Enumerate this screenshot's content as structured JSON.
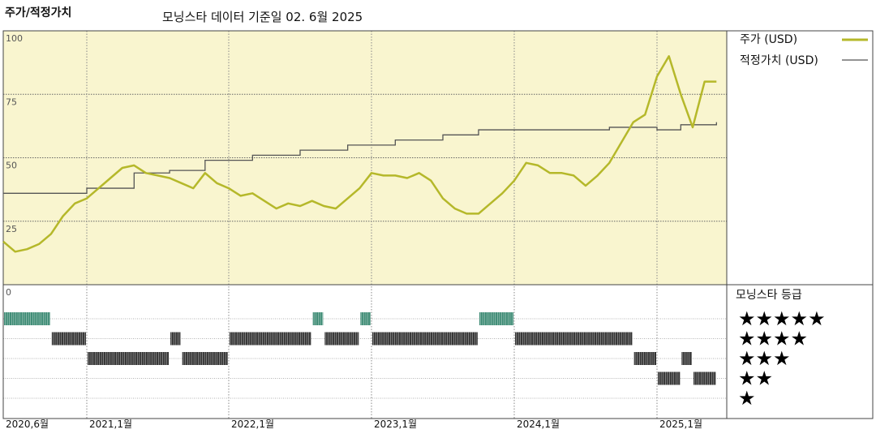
{
  "header": {
    "title": "주가/적정가치",
    "subtitle": "모닝스타 데이터 기준일 02. 6월 2025"
  },
  "legend": {
    "price_label": "주가 (USD)",
    "fair_value_label": "적정가치 (USD)",
    "rating_title": "모닝스타 등급"
  },
  "colors": {
    "price_line": "#b5b82a",
    "fair_value_line": "#555555",
    "plot_background": "#f9f5cf",
    "five_star_bars": "#3d8b74",
    "rating_bars": "#333333"
  },
  "chart_data": {
    "type": "line",
    "title": "주가/적정가치",
    "subtitle": "모닝스타 데이터 기준일 02. 6월 2025",
    "ylim": [
      0,
      100
    ],
    "y_ticks": [
      "100",
      "75",
      "50",
      "25",
      "0"
    ],
    "x_tick_labels": [
      "2020,6월",
      "2021,1월",
      "2022,1월",
      "2023,1월",
      "2024,1월",
      "2025,1월"
    ],
    "x_tick_dates": [
      "2020-06",
      "2021-01",
      "2022-01",
      "2023-01",
      "2024-01",
      "2025-01"
    ],
    "grid": true,
    "legend_position": "right",
    "series": [
      {
        "name": "주가 (USD)",
        "points": [
          [
            "2020-06",
            17
          ],
          [
            "2020-07",
            13
          ],
          [
            "2020-08",
            14
          ],
          [
            "2020-09",
            16
          ],
          [
            "2020-10",
            20
          ],
          [
            "2020-11",
            27
          ],
          [
            "2020-12",
            32
          ],
          [
            "2021-01",
            34
          ],
          [
            "2021-02",
            38
          ],
          [
            "2021-03",
            42
          ],
          [
            "2021-04",
            46
          ],
          [
            "2021-05",
            47
          ],
          [
            "2021-06",
            44
          ],
          [
            "2021-07",
            43
          ],
          [
            "2021-08",
            42
          ],
          [
            "2021-09",
            40
          ],
          [
            "2021-10",
            38
          ],
          [
            "2021-11",
            44
          ],
          [
            "2021-12",
            40
          ],
          [
            "2022-01",
            38
          ],
          [
            "2022-02",
            35
          ],
          [
            "2022-03",
            36
          ],
          [
            "2022-04",
            33
          ],
          [
            "2022-05",
            30
          ],
          [
            "2022-06",
            32
          ],
          [
            "2022-07",
            31
          ],
          [
            "2022-08",
            33
          ],
          [
            "2022-09",
            31
          ],
          [
            "2022-10",
            30
          ],
          [
            "2022-11",
            34
          ],
          [
            "2022-12",
            38
          ],
          [
            "2023-01",
            44
          ],
          [
            "2023-02",
            43
          ],
          [
            "2023-03",
            43
          ],
          [
            "2023-04",
            42
          ],
          [
            "2023-05",
            44
          ],
          [
            "2023-06",
            41
          ],
          [
            "2023-07",
            34
          ],
          [
            "2023-08",
            30
          ],
          [
            "2023-09",
            28
          ],
          [
            "2023-10",
            28
          ],
          [
            "2023-11",
            32
          ],
          [
            "2023-12",
            36
          ],
          [
            "2024-01",
            41
          ],
          [
            "2024-02",
            48
          ],
          [
            "2024-03",
            47
          ],
          [
            "2024-04",
            44
          ],
          [
            "2024-05",
            44
          ],
          [
            "2024-06",
            43
          ],
          [
            "2024-07",
            39
          ],
          [
            "2024-08",
            43
          ],
          [
            "2024-09",
            48
          ],
          [
            "2024-10",
            56
          ],
          [
            "2024-11",
            64
          ],
          [
            "2024-12",
            67
          ],
          [
            "2025-01",
            82
          ],
          [
            "2025-02",
            90
          ],
          [
            "2025-03",
            75
          ],
          [
            "2025-04",
            62
          ],
          [
            "2025-05",
            80
          ],
          [
            "2025-06",
            80
          ]
        ]
      },
      {
        "name": "적정가치 (USD)",
        "step_points": [
          [
            "2020-06",
            36
          ],
          [
            "2021-01",
            38
          ],
          [
            "2021-05",
            44
          ],
          [
            "2021-08",
            45
          ],
          [
            "2021-11",
            49
          ],
          [
            "2022-03",
            51
          ],
          [
            "2022-07",
            53
          ],
          [
            "2022-11",
            55
          ],
          [
            "2023-03",
            57
          ],
          [
            "2023-07",
            59
          ],
          [
            "2023-10",
            61
          ],
          [
            "2024-09",
            62
          ],
          [
            "2025-01",
            61
          ],
          [
            "2025-03",
            63
          ],
          [
            "2025-06",
            64
          ]
        ]
      }
    ],
    "rating_rows": [
      "★★★★★",
      "★★★★",
      "★★★",
      "★★",
      "★"
    ],
    "rating_periods": [
      {
        "rating": 5,
        "from": "2020-06",
        "to": "2020-10"
      },
      {
        "rating": 4,
        "from": "2020-10",
        "to": "2021-01"
      },
      {
        "rating": 3,
        "from": "2021-01",
        "to": "2021-08"
      },
      {
        "rating": 4,
        "from": "2021-08",
        "to": "2021-09"
      },
      {
        "rating": 3,
        "from": "2021-09",
        "to": "2022-01"
      },
      {
        "rating": 4,
        "from": "2022-01",
        "to": "2022-08"
      },
      {
        "rating": 5,
        "from": "2022-08",
        "to": "2022-09"
      },
      {
        "rating": 4,
        "from": "2022-09",
        "to": "2022-12"
      },
      {
        "rating": 5,
        "from": "2022-12",
        "to": "2023-01"
      },
      {
        "rating": 4,
        "from": "2023-01",
        "to": "2023-10"
      },
      {
        "rating": 5,
        "from": "2023-10",
        "to": "2024-01"
      },
      {
        "rating": 4,
        "from": "2024-01",
        "to": "2024-11"
      },
      {
        "rating": 3,
        "from": "2024-11",
        "to": "2025-01"
      },
      {
        "rating": 2,
        "from": "2025-01",
        "to": "2025-03"
      },
      {
        "rating": 3,
        "from": "2025-03",
        "to": "2025-04"
      },
      {
        "rating": 2,
        "from": "2025-04",
        "to": "2025-06"
      }
    ]
  }
}
